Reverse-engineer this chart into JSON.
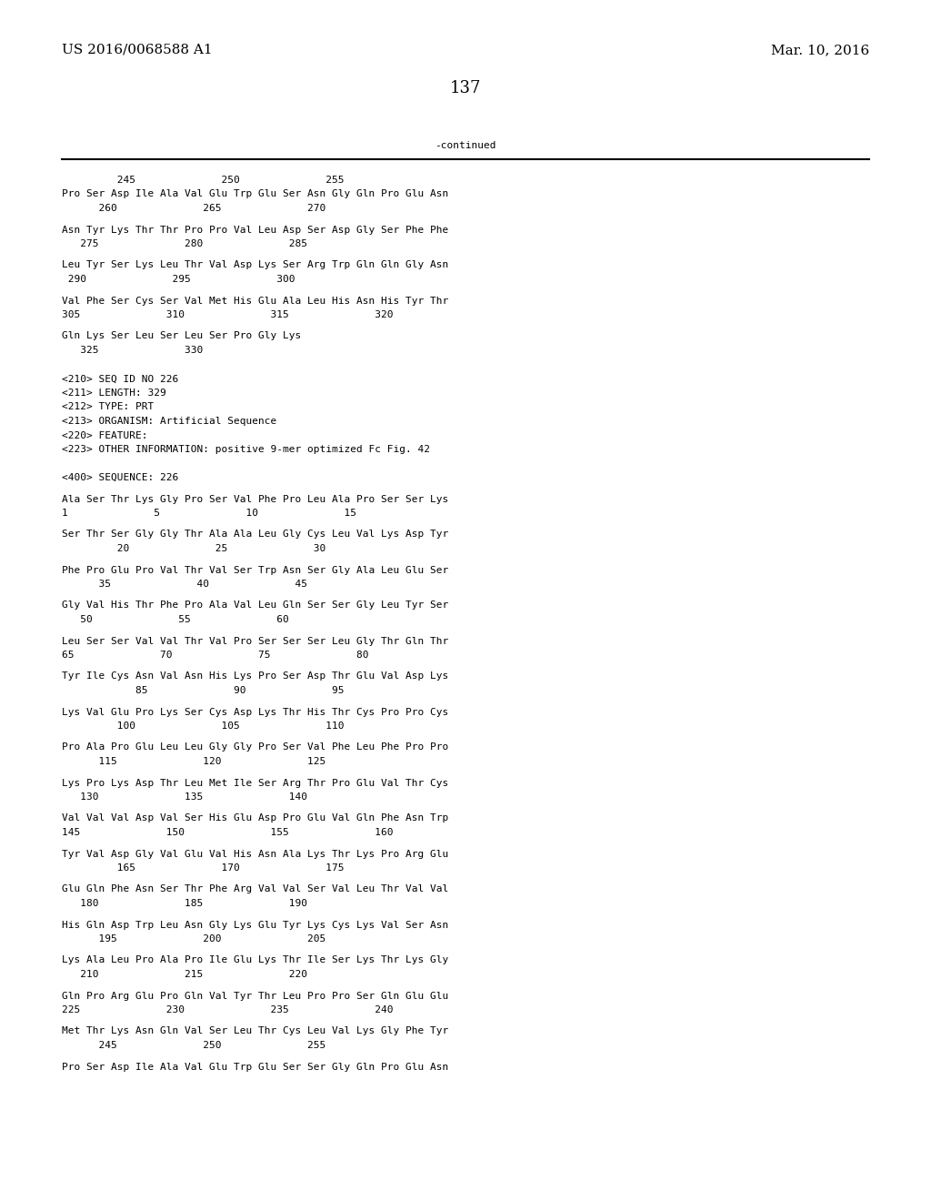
{
  "header_left": "US 2016/0068588 A1",
  "header_right": "Mar. 10, 2016",
  "page_number": "137",
  "continued_label": "-continued",
  "background_color": "#ffffff",
  "text_color": "#000000",
  "font_size_header": 11,
  "font_size_body": 8.0,
  "font_size_page": 13,
  "seq_blocks": [
    {
      "num_line": "         245              250              255",
      "sequence": "Pro Ser Asp Ile Ala Val Glu Trp Glu Ser Asn Gly Gln Pro Glu Asn",
      "pos_line": "      260              265              270"
    },
    {
      "num_line": "",
      "sequence": "Asn Tyr Lys Thr Thr Pro Pro Val Leu Asp Ser Asp Gly Ser Phe Phe",
      "pos_line": "   275              280              285"
    },
    {
      "num_line": "",
      "sequence": "Leu Tyr Ser Lys Leu Thr Val Asp Lys Ser Arg Trp Gln Gln Gly Asn",
      "pos_line": " 290              295              300"
    },
    {
      "num_line": "",
      "sequence": "Val Phe Ser Cys Ser Val Met His Glu Ala Leu His Asn His Tyr Thr",
      "pos_line": "305              310              315              320"
    },
    {
      "num_line": "",
      "sequence": "Gln Lys Ser Leu Ser Leu Ser Pro Gly Lys",
      "pos_line": "   325              330"
    }
  ],
  "metadata": [
    "<210> SEQ ID NO 226",
    "<211> LENGTH: 329",
    "<212> TYPE: PRT",
    "<213> ORGANISM: Artificial Sequence",
    "<220> FEATURE:",
    "<223> OTHER INFORMATION: positive 9-mer optimized Fc Fig. 42",
    "",
    "<400> SEQUENCE: 226"
  ],
  "seq_blocks2": [
    {
      "sequence": "Ala Ser Thr Lys Gly Pro Ser Val Phe Pro Leu Ala Pro Ser Ser Lys",
      "pos_line": "1              5              10              15"
    },
    {
      "sequence": "Ser Thr Ser Gly Gly Thr Ala Ala Leu Gly Cys Leu Val Lys Asp Tyr",
      "pos_line": "         20              25              30"
    },
    {
      "sequence": "Phe Pro Glu Pro Val Thr Val Ser Trp Asn Ser Gly Ala Leu Glu Ser",
      "pos_line": "      35              40              45"
    },
    {
      "sequence": "Gly Val His Thr Phe Pro Ala Val Leu Gln Ser Ser Gly Leu Tyr Ser",
      "pos_line": "   50              55              60"
    },
    {
      "sequence": "Leu Ser Ser Val Val Thr Val Pro Ser Ser Ser Leu Gly Thr Gln Thr",
      "pos_line": "65              70              75              80"
    },
    {
      "sequence": "Tyr Ile Cys Asn Val Asn His Lys Pro Ser Asp Thr Glu Val Asp Lys",
      "pos_line": "            85              90              95"
    },
    {
      "sequence": "Lys Val Glu Pro Lys Ser Cys Asp Lys Thr His Thr Cys Pro Pro Cys",
      "pos_line": "         100              105              110"
    },
    {
      "sequence": "Pro Ala Pro Glu Leu Leu Gly Gly Pro Ser Val Phe Leu Phe Pro Pro",
      "pos_line": "      115              120              125"
    },
    {
      "sequence": "Lys Pro Lys Asp Thr Leu Met Ile Ser Arg Thr Pro Glu Val Thr Cys",
      "pos_line": "   130              135              140"
    },
    {
      "sequence": "Val Val Val Asp Val Ser His Glu Asp Pro Glu Val Gln Phe Asn Trp",
      "pos_line": "145              150              155              160"
    },
    {
      "sequence": "Tyr Val Asp Gly Val Glu Val His Asn Ala Lys Thr Lys Pro Arg Glu",
      "pos_line": "         165              170              175"
    },
    {
      "sequence": "Glu Gln Phe Asn Ser Thr Phe Arg Val Val Ser Val Leu Thr Val Val",
      "pos_line": "   180              185              190"
    },
    {
      "sequence": "His Gln Asp Trp Leu Asn Gly Lys Glu Tyr Lys Cys Lys Val Ser Asn",
      "pos_line": "      195              200              205"
    },
    {
      "sequence": "Lys Ala Leu Pro Ala Pro Ile Glu Lys Thr Ile Ser Lys Thr Lys Gly",
      "pos_line": "   210              215              220"
    },
    {
      "sequence": "Gln Pro Arg Glu Pro Gln Val Tyr Thr Leu Pro Pro Ser Gln Glu Glu",
      "pos_line": "225              230              235              240"
    },
    {
      "sequence": "Met Thr Lys Asn Gln Val Ser Leu Thr Cys Leu Val Lys Gly Phe Tyr",
      "pos_line": "      245              250              255"
    },
    {
      "sequence": "Pro Ser Asp Ile Ala Val Glu Trp Glu Ser Ser Gly Gln Pro Glu Asn",
      "pos_line": ""
    }
  ]
}
